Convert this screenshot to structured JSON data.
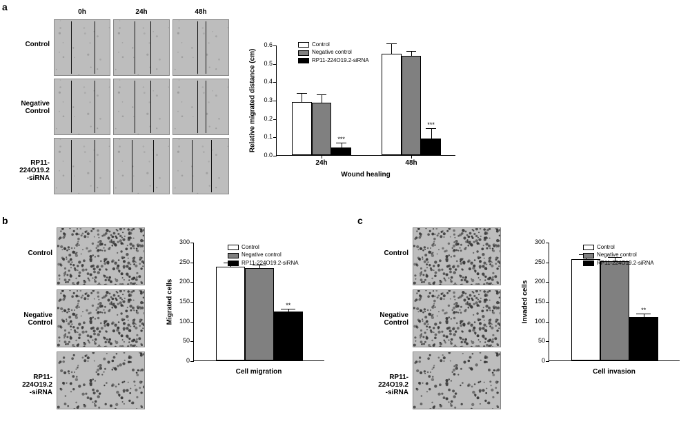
{
  "colors": {
    "control": "#ffffff",
    "negative": "#808080",
    "sirna": "#000000",
    "axis": "#000000",
    "text": "#000000",
    "micro_light": "#bdbdbd",
    "micro_dark": "#6e6e6e"
  },
  "legend": {
    "items": [
      {
        "label": "Control",
        "color_key": "control"
      },
      {
        "label": "Negative control",
        "color_key": "negative"
      },
      {
        "label": "RP11-224O19.2-siRNA",
        "color_key": "sirna"
      }
    ]
  },
  "panel_a": {
    "label": "a",
    "col_headers": [
      "0h",
      "24h",
      "48h"
    ],
    "row_labels": [
      "Control",
      "Negative\nControl",
      "RP11-224O19.2\n-siRNA"
    ],
    "chart": {
      "type": "bar",
      "ylabel": "Relative migrated distance (cm)",
      "xlabel": "Wound healing",
      "ylim": [
        0,
        0.6
      ],
      "ytick_step": 0.1,
      "groups": [
        "24h",
        "48h"
      ],
      "series": [
        {
          "name": "Control",
          "color_key": "control",
          "values": [
            0.29,
            0.55
          ],
          "err": [
            0.05,
            0.06
          ]
        },
        {
          "name": "Negative control",
          "color_key": "negative",
          "values": [
            0.285,
            0.54
          ],
          "err": [
            0.05,
            0.03
          ]
        },
        {
          "name": "RP11-224O19.2-siRNA",
          "color_key": "sirna",
          "values": [
            0.04,
            0.09
          ],
          "err": [
            0.03,
            0.06
          ],
          "sig": [
            "***",
            "***"
          ]
        }
      ],
      "bar_width_ratio": 0.22,
      "group_gap_ratio": 0.18
    }
  },
  "panel_b": {
    "label": "b",
    "row_labels": [
      "Control",
      "Negative\nControl",
      "RP11-224O19.2\n-siRNA"
    ],
    "chart": {
      "type": "bar",
      "ylabel": "Migrated cells",
      "xlabel": "Cell migration",
      "ylim": [
        0,
        300
      ],
      "ytick_step": 50,
      "values": [
        {
          "name": "Control",
          "color_key": "control",
          "value": 237,
          "err": 12
        },
        {
          "name": "Negative control",
          "color_key": "negative",
          "value": 234,
          "err": 11
        },
        {
          "name": "RP11-224O19.2-siRNA",
          "color_key": "sirna",
          "value": 123,
          "err": 9,
          "sig": "**"
        }
      ],
      "bar_width_ratio": 0.22
    }
  },
  "panel_c": {
    "label": "c",
    "row_labels": [
      "Control",
      "Negative\nControl",
      "RP11-224O19.2\n-siRNA"
    ],
    "chart": {
      "type": "bar",
      "ylabel": "Invaded cells",
      "xlabel": "Cell invasion",
      "ylim": [
        0,
        300
      ],
      "ytick_step": 50,
      "values": [
        {
          "name": "Control",
          "color_key": "control",
          "value": 256,
          "err": 14
        },
        {
          "name": "Negative control",
          "color_key": "negative",
          "value": 251,
          "err": 13
        },
        {
          "name": "RP11-224O19.2-siRNA",
          "color_key": "sirna",
          "value": 110,
          "err": 10,
          "sig": "**"
        }
      ],
      "bar_width_ratio": 0.22
    }
  }
}
